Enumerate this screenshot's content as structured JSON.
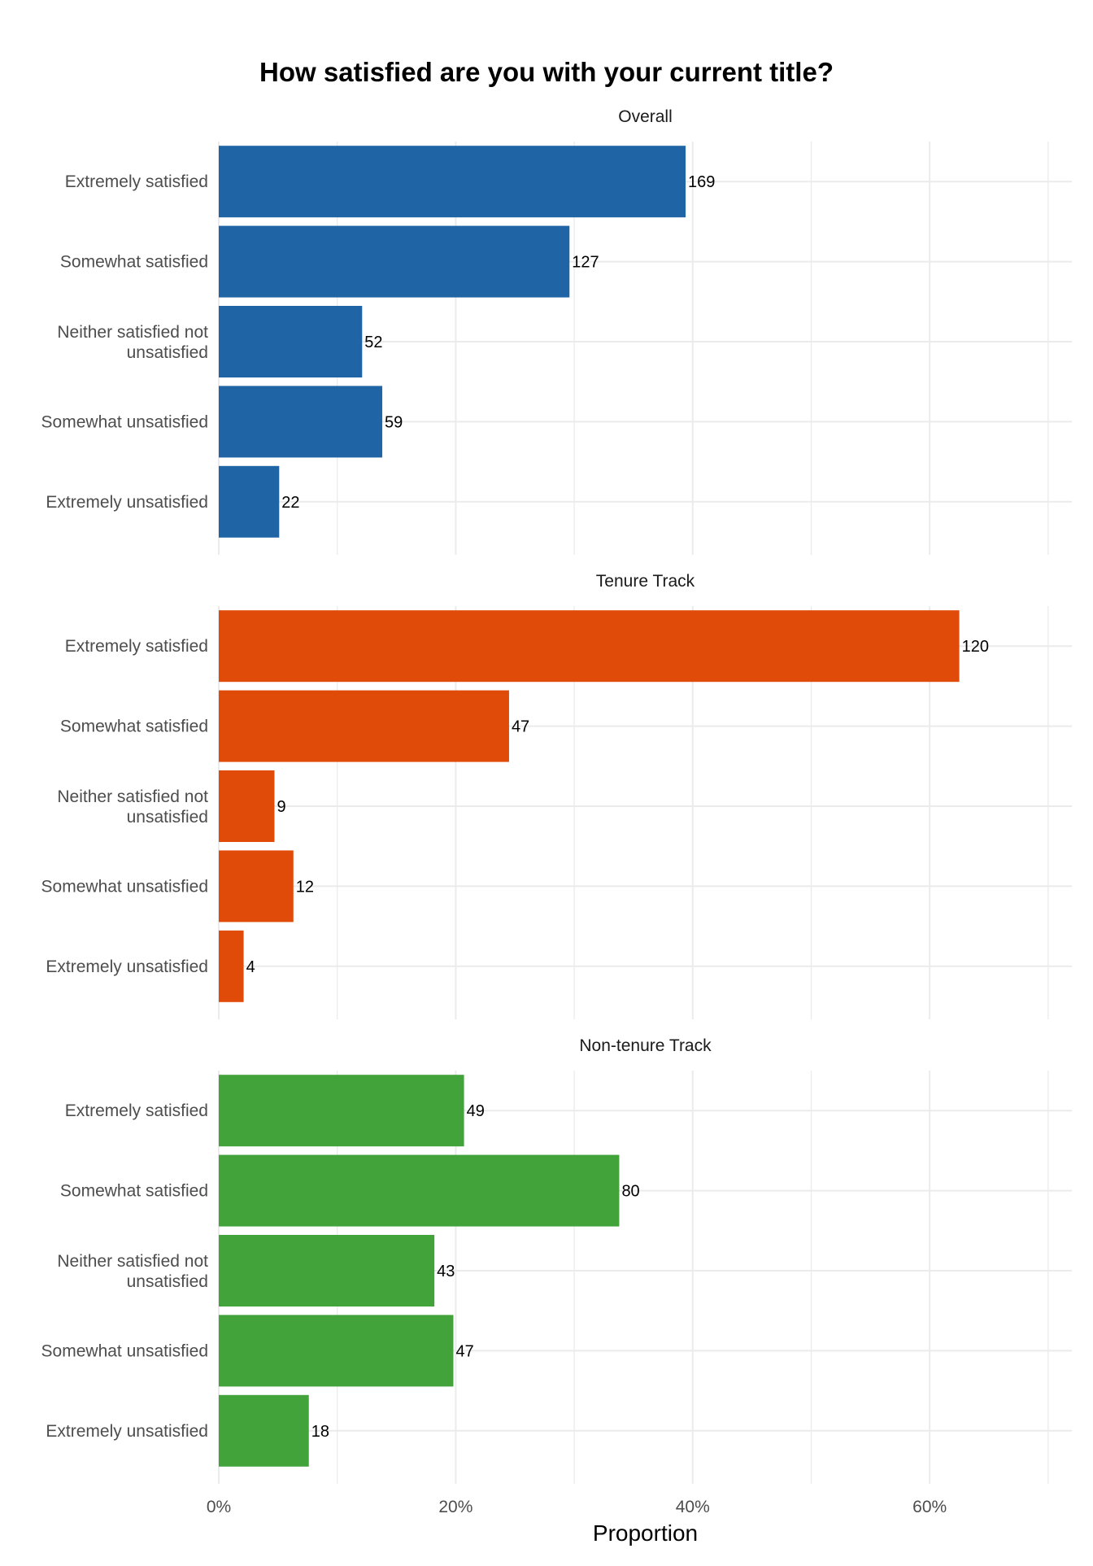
{
  "chart_data": {
    "type": "bar",
    "orientation": "horizontal",
    "title": "How satisfied are you with your current title?",
    "xlabel": "Proportion",
    "ylabel": "",
    "xlim": [
      0,
      0.72
    ],
    "x_ticks": [
      0,
      0.2,
      0.4,
      0.6
    ],
    "x_tick_labels": [
      "0%",
      "20%",
      "40%",
      "60%"
    ],
    "grid": true,
    "categories": [
      "Extremely satisfied",
      "Somewhat satisfied",
      "Neither satisfied not unsatisfied",
      "Somewhat unsatisfied",
      "Extremely unsatisfied"
    ],
    "category_lines": [
      [
        "Extremely satisfied"
      ],
      [
        "Somewhat satisfied"
      ],
      [
        "Neither satisfied not",
        "unsatisfied"
      ],
      [
        "Somewhat unsatisfied"
      ],
      [
        "Extremely unsatisfied"
      ]
    ],
    "panels": [
      {
        "label": "Overall",
        "color": "#1f65a6",
        "proportions": [
          0.394,
          0.296,
          0.121,
          0.138,
          0.051
        ],
        "counts": [
          "169",
          "127",
          "52",
          "59",
          "22"
        ]
      },
      {
        "label": "Tenure Track",
        "color": "#e04b0a",
        "proportions": [
          0.625,
          0.245,
          0.047,
          0.063,
          0.021
        ],
        "counts": [
          "120",
          "47",
          "9",
          "12",
          "4"
        ]
      },
      {
        "label": "Non-tenure Track",
        "color": "#42a33b",
        "proportions": [
          0.207,
          0.338,
          0.182,
          0.198,
          0.076
        ],
        "counts": [
          "49",
          "80",
          "43",
          "47",
          "18"
        ]
      }
    ]
  }
}
